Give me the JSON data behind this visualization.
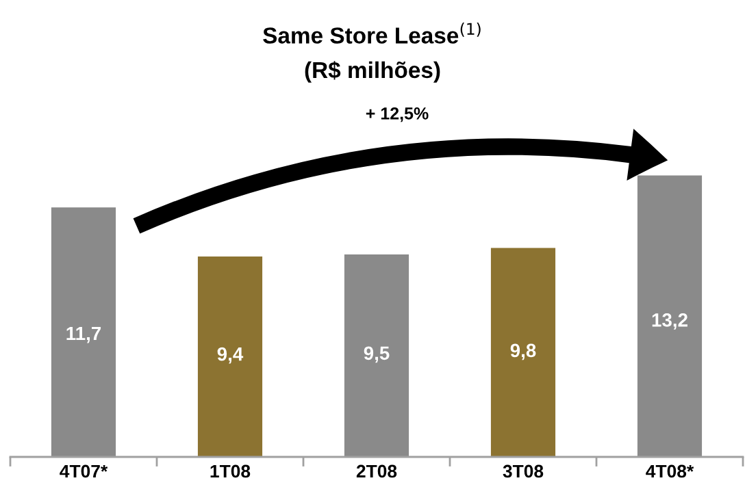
{
  "chart_data": {
    "type": "bar",
    "title": "Same Store Lease$^{(1)}$",
    "subtitle": "(R$ milhões)",
    "annotations": [
      "+ 12,5%"
    ],
    "categories": [
      "4T07*",
      "1T08",
      "2T08",
      "3T08",
      "4T08*"
    ],
    "values": [
      11.7,
      9.4,
      9.5,
      9.8,
      13.2
    ],
    "value_labels": [
      "11,7",
      "9,4",
      "9,5",
      "9,8",
      "13,2"
    ],
    "colors": [
      "#8a8a8a",
      "#8c7331",
      "#8a8a8a",
      "#8c7331",
      "#8a8a8a"
    ],
    "grid": false,
    "legend": false
  }
}
